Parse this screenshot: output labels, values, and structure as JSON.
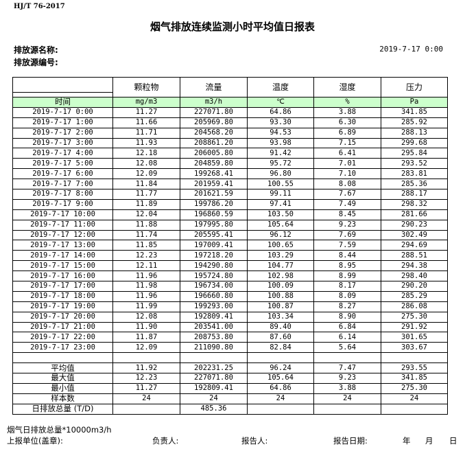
{
  "standard": "HJ/T 76-2017",
  "title": "烟气排放连续监测小时平均值日报表",
  "source_name_label": "排放源名称:",
  "source_id_label": "排放源编号:",
  "report_datetime": "2019-7-17 0:00",
  "table": {
    "columns": [
      "颗粒物",
      "流量",
      "温度",
      "湿度",
      "压力"
    ],
    "time_header": "时间",
    "units": [
      "mg/m3",
      "m3/h",
      "℃",
      "%",
      "Pa"
    ],
    "rows": [
      [
        "2019-7-17 0:00",
        "11.27",
        "227071.80",
        "64.86",
        "3.88",
        "341.85"
      ],
      [
        "2019-7-17 1:00",
        "11.66",
        "205969.80",
        "93.30",
        "6.30",
        "285.92"
      ],
      [
        "2019-7-17 2:00",
        "11.71",
        "204568.20",
        "94.53",
        "6.89",
        "288.13"
      ],
      [
        "2019-7-17 3:00",
        "11.93",
        "208861.20",
        "93.98",
        "7.15",
        "299.68"
      ],
      [
        "2019-7-17 4:00",
        "12.18",
        "206005.80",
        "91.42",
        "6.41",
        "295.84"
      ],
      [
        "2019-7-17 5:00",
        "12.08",
        "204859.80",
        "95.72",
        "7.01",
        "293.52"
      ],
      [
        "2019-7-17 6:00",
        "12.09",
        "199268.41",
        "96.80",
        "7.10",
        "283.81"
      ],
      [
        "2019-7-17 7:00",
        "11.84",
        "201959.41",
        "100.55",
        "8.08",
        "285.36"
      ],
      [
        "2019-7-17 8:00",
        "11.77",
        "201621.59",
        "99.11",
        "7.67",
        "288.17"
      ],
      [
        "2019-7-17 9:00",
        "11.89",
        "199786.20",
        "97.41",
        "7.49",
        "298.32"
      ],
      [
        "2019-7-17 10:00",
        "12.04",
        "196860.59",
        "103.50",
        "8.45",
        "281.66"
      ],
      [
        "2019-7-17 11:00",
        "11.88",
        "197995.80",
        "105.64",
        "9.23",
        "290.23"
      ],
      [
        "2019-7-17 12:00",
        "11.74",
        "205595.41",
        "96.12",
        "7.69",
        "302.49"
      ],
      [
        "2019-7-17 13:00",
        "11.85",
        "197009.41",
        "100.65",
        "7.59",
        "294.69"
      ],
      [
        "2019-7-17 14:00",
        "12.23",
        "197218.20",
        "103.29",
        "8.44",
        "288.51"
      ],
      [
        "2019-7-17 15:00",
        "12.11",
        "194290.80",
        "104.77",
        "8.95",
        "294.38"
      ],
      [
        "2019-7-17 16:00",
        "11.96",
        "195724.80",
        "102.98",
        "8.99",
        "298.40"
      ],
      [
        "2019-7-17 17:00",
        "11.98",
        "196734.00",
        "100.09",
        "8.17",
        "290.20"
      ],
      [
        "2019-7-17 18:00",
        "11.96",
        "196660.80",
        "100.88",
        "8.09",
        "285.29"
      ],
      [
        "2019-7-17 19:00",
        "11.99",
        "199293.00",
        "100.87",
        "8.27",
        "286.08"
      ],
      [
        "2019-7-17 20:00",
        "12.08",
        "192809.41",
        "103.34",
        "8.90",
        "275.30"
      ],
      [
        "2019-7-17 21:00",
        "11.90",
        "203541.00",
        "89.40",
        "6.84",
        "291.92"
      ],
      [
        "2019-7-17 22:00",
        "11.87",
        "208753.80",
        "87.60",
        "6.14",
        "301.65"
      ],
      [
        "2019-7-17 23:00",
        "12.09",
        "211090.80",
        "82.84",
        "5.64",
        "303.67"
      ]
    ],
    "stats": [
      [
        "平均值",
        "11.92",
        "202231.25",
        "96.24",
        "7.47",
        "293.55"
      ],
      [
        "最大值",
        "12.23",
        "227071.80",
        "105.64",
        "9.23",
        "341.85"
      ],
      [
        "最小值",
        "11.27",
        "192809.41",
        "64.86",
        "3.88",
        "275.30"
      ],
      [
        "样本数",
        "24",
        "24",
        "24",
        "24",
        "24"
      ],
      [
        "日排放总量 (T/D)",
        "",
        "485.36",
        "",
        "",
        ""
      ]
    ]
  },
  "footer": {
    "note": "烟气日排放总量*10000m3/h",
    "unit_label": "上报单位(盖章):",
    "responsible_label": "负责人:",
    "reporter_label": "报告人:",
    "report_date_label": "报告日期:",
    "year": "年",
    "month": "月",
    "day": "日"
  },
  "colors": {
    "unit_row_bg": "#ccffcc"
  }
}
